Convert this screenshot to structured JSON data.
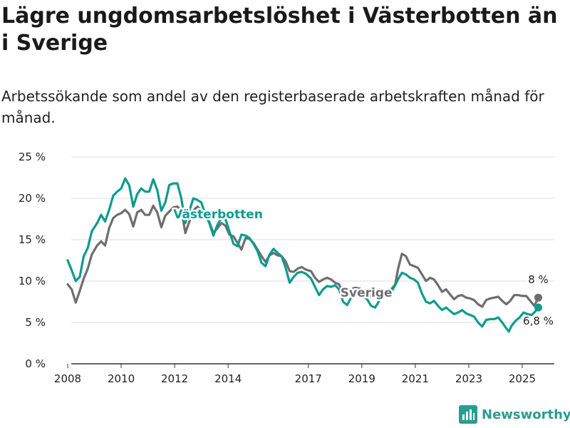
{
  "colors": {
    "sverige": "#6e6e70",
    "vasterbotten": "#0b9c8f",
    "grid": "#dddddd",
    "axis": "#333333",
    "brand": "#2a9c93"
  },
  "brand": {
    "name": "Newsworthy",
    "icon": "bar-chart-logo-icon"
  },
  "chart_data": {
    "type": "line",
    "title": "Lägre ungdomsarbetslöshet i Västerbotten än i Sverige",
    "subtitle": "Arbetssökande som andel av den registerbaserade arbetskraften månad för månad.",
    "xlabel": "",
    "ylabel": "",
    "xlim": [
      2007.6,
      2026.2
    ],
    "ylim": [
      0,
      25
    ],
    "x_ticks": [
      2008,
      2010,
      2012,
      2014,
      2017,
      2019,
      2021,
      2023,
      2025
    ],
    "x_tick_labels": [
      "2008",
      "2010",
      "2012",
      "2014",
      "2017",
      "2019",
      "2021",
      "2023",
      "2025"
    ],
    "y_ticks": [
      0,
      5,
      10,
      15,
      20,
      25
    ],
    "y_tick_labels": [
      "0 %",
      "5 %",
      "10 %",
      "15 %",
      "20 %",
      "25 %"
    ],
    "grid": true,
    "legend": "inline labels",
    "series": [
      {
        "name": "Sverige",
        "end_label": "8 %",
        "points": [
          [
            2008.0,
            9.6
          ],
          [
            2008.15,
            9.0
          ],
          [
            2008.3,
            7.4
          ],
          [
            2008.45,
            8.8
          ],
          [
            2008.6,
            10.3
          ],
          [
            2008.75,
            11.5
          ],
          [
            2008.9,
            13.2
          ],
          [
            2009.1,
            14.3
          ],
          [
            2009.25,
            14.8
          ],
          [
            2009.4,
            14.3
          ],
          [
            2009.55,
            16.4
          ],
          [
            2009.7,
            17.6
          ],
          [
            2009.85,
            18.0
          ],
          [
            2010.0,
            18.2
          ],
          [
            2010.15,
            18.6
          ],
          [
            2010.3,
            18.1
          ],
          [
            2010.45,
            16.6
          ],
          [
            2010.6,
            18.3
          ],
          [
            2010.75,
            18.6
          ],
          [
            2010.9,
            18.0
          ],
          [
            2011.05,
            18.0
          ],
          [
            2011.2,
            19.1
          ],
          [
            2011.35,
            18.3
          ],
          [
            2011.5,
            16.5
          ],
          [
            2011.65,
            17.9
          ],
          [
            2011.8,
            18.4
          ],
          [
            2011.95,
            18.9
          ],
          [
            2012.1,
            19.0
          ],
          [
            2012.25,
            18.6
          ],
          [
            2012.4,
            15.8
          ],
          [
            2012.55,
            17.2
          ],
          [
            2012.7,
            18.5
          ],
          [
            2012.85,
            19.0
          ],
          [
            2013.0,
            18.6
          ],
          [
            2013.15,
            17.9
          ],
          [
            2013.3,
            17.1
          ],
          [
            2013.45,
            15.8
          ],
          [
            2013.6,
            16.4
          ],
          [
            2013.75,
            17.0
          ],
          [
            2013.9,
            16.7
          ],
          [
            2014.05,
            15.6
          ],
          [
            2014.2,
            15.4
          ],
          [
            2014.35,
            14.6
          ],
          [
            2014.5,
            13.8
          ],
          [
            2014.65,
            15.2
          ],
          [
            2014.8,
            15.1
          ],
          [
            2014.95,
            14.6
          ],
          [
            2015.1,
            13.8
          ],
          [
            2015.25,
            13.0
          ],
          [
            2015.4,
            12.3
          ],
          [
            2015.55,
            13.1
          ],
          [
            2015.7,
            13.4
          ],
          [
            2015.85,
            13.1
          ],
          [
            2016.0,
            13.0
          ],
          [
            2016.15,
            12.4
          ],
          [
            2016.3,
            11.2
          ],
          [
            2016.45,
            11.1
          ],
          [
            2016.6,
            11.5
          ],
          [
            2016.75,
            11.7
          ],
          [
            2016.9,
            11.4
          ],
          [
            2017.1,
            11.2
          ],
          [
            2017.25,
            10.4
          ],
          [
            2017.4,
            9.9
          ],
          [
            2017.55,
            10.2
          ],
          [
            2017.7,
            10.4
          ],
          [
            2017.85,
            10.2
          ],
          [
            2018.0,
            9.8
          ],
          [
            2018.15,
            9.6
          ],
          [
            2018.3,
            8.6
          ],
          [
            2018.45,
            8.5
          ],
          [
            2018.6,
            9.0
          ],
          [
            2018.75,
            9.2
          ],
          [
            2018.9,
            9.1
          ],
          [
            2019.05,
            8.9
          ],
          [
            2019.2,
            8.8
          ],
          [
            2019.35,
            8.1
          ],
          [
            2019.5,
            8.0
          ],
          [
            2019.65,
            8.4
          ],
          [
            2019.8,
            8.6
          ],
          [
            2019.95,
            8.6
          ],
          [
            2020.1,
            9.0
          ],
          [
            2020.25,
            9.6
          ],
          [
            2020.35,
            11.4
          ],
          [
            2020.5,
            13.3
          ],
          [
            2020.65,
            13.0
          ],
          [
            2020.8,
            12.0
          ],
          [
            2020.95,
            11.8
          ],
          [
            2021.1,
            11.6
          ],
          [
            2021.25,
            10.8
          ],
          [
            2021.4,
            10.0
          ],
          [
            2021.55,
            10.4
          ],
          [
            2021.7,
            10.2
          ],
          [
            2021.85,
            9.5
          ],
          [
            2022.0,
            8.7
          ],
          [
            2022.15,
            9.0
          ],
          [
            2022.3,
            8.4
          ],
          [
            2022.45,
            7.8
          ],
          [
            2022.6,
            8.2
          ],
          [
            2022.75,
            8.3
          ],
          [
            2022.9,
            8.0
          ],
          [
            2023.05,
            7.9
          ],
          [
            2023.2,
            7.7
          ],
          [
            2023.35,
            7.2
          ],
          [
            2023.5,
            6.9
          ],
          [
            2023.65,
            7.7
          ],
          [
            2023.8,
            7.9
          ],
          [
            2023.95,
            8.0
          ],
          [
            2024.1,
            8.1
          ],
          [
            2024.25,
            7.6
          ],
          [
            2024.4,
            7.2
          ],
          [
            2024.55,
            7.6
          ],
          [
            2024.7,
            8.3
          ],
          [
            2024.85,
            8.3
          ],
          [
            2025.0,
            8.2
          ],
          [
            2025.15,
            8.2
          ],
          [
            2025.3,
            7.6
          ],
          [
            2025.45,
            7.0
          ],
          [
            2025.6,
            8.0
          ]
        ]
      },
      {
        "name": "Västerbotten",
        "end_label": "6,8 %",
        "points": [
          [
            2008.0,
            12.5
          ],
          [
            2008.15,
            11.3
          ],
          [
            2008.3,
            10.0
          ],
          [
            2008.45,
            10.5
          ],
          [
            2008.6,
            13.0
          ],
          [
            2008.75,
            14.0
          ],
          [
            2008.9,
            16.0
          ],
          [
            2009.1,
            17.0
          ],
          [
            2009.25,
            18.0
          ],
          [
            2009.4,
            17.2
          ],
          [
            2009.55,
            18.6
          ],
          [
            2009.7,
            20.3
          ],
          [
            2009.85,
            20.8
          ],
          [
            2010.0,
            21.2
          ],
          [
            2010.15,
            22.4
          ],
          [
            2010.3,
            21.6
          ],
          [
            2010.45,
            19.0
          ],
          [
            2010.6,
            20.5
          ],
          [
            2010.75,
            21.2
          ],
          [
            2010.9,
            20.8
          ],
          [
            2011.05,
            20.8
          ],
          [
            2011.2,
            22.3
          ],
          [
            2011.35,
            21.0
          ],
          [
            2011.5,
            18.5
          ],
          [
            2011.65,
            19.5
          ],
          [
            2011.8,
            21.6
          ],
          [
            2011.95,
            21.8
          ],
          [
            2012.1,
            21.8
          ],
          [
            2012.25,
            20.0
          ],
          [
            2012.4,
            17.0
          ],
          [
            2012.55,
            18.5
          ],
          [
            2012.7,
            20.0
          ],
          [
            2012.85,
            19.8
          ],
          [
            2013.0,
            19.5
          ],
          [
            2013.15,
            18.0
          ],
          [
            2013.3,
            17.0
          ],
          [
            2013.45,
            15.5
          ],
          [
            2013.6,
            16.8
          ],
          [
            2013.75,
            17.6
          ],
          [
            2013.9,
            17.5
          ],
          [
            2014.05,
            16.0
          ],
          [
            2014.2,
            14.5
          ],
          [
            2014.35,
            14.2
          ],
          [
            2014.5,
            15.6
          ],
          [
            2014.65,
            15.5
          ],
          [
            2014.8,
            15.2
          ],
          [
            2014.95,
            14.5
          ],
          [
            2015.1,
            13.6
          ],
          [
            2015.25,
            12.2
          ],
          [
            2015.4,
            11.8
          ],
          [
            2015.55,
            13.2
          ],
          [
            2015.7,
            13.9
          ],
          [
            2015.85,
            13.4
          ],
          [
            2016.0,
            13.0
          ],
          [
            2016.15,
            11.6
          ],
          [
            2016.3,
            9.8
          ],
          [
            2016.45,
            10.5
          ],
          [
            2016.6,
            11.0
          ],
          [
            2016.75,
            11.1
          ],
          [
            2016.9,
            10.9
          ],
          [
            2017.1,
            10.3
          ],
          [
            2017.25,
            9.3
          ],
          [
            2017.4,
            8.3
          ],
          [
            2017.55,
            9.0
          ],
          [
            2017.7,
            9.4
          ],
          [
            2017.85,
            9.3
          ],
          [
            2018.0,
            9.5
          ],
          [
            2018.15,
            9.0
          ],
          [
            2018.3,
            7.5
          ],
          [
            2018.45,
            7.1
          ],
          [
            2018.6,
            8.0
          ],
          [
            2018.75,
            8.5
          ],
          [
            2018.9,
            8.6
          ],
          [
            2019.05,
            8.2
          ],
          [
            2019.2,
            7.8
          ],
          [
            2019.35,
            7.0
          ],
          [
            2019.5,
            6.8
          ],
          [
            2019.65,
            7.6
          ],
          [
            2019.8,
            8.2
          ],
          [
            2019.95,
            8.4
          ],
          [
            2020.1,
            8.7
          ],
          [
            2020.25,
            9.5
          ],
          [
            2020.35,
            10.2
          ],
          [
            2020.5,
            11.0
          ],
          [
            2020.65,
            10.8
          ],
          [
            2020.8,
            10.4
          ],
          [
            2020.95,
            10.2
          ],
          [
            2021.1,
            9.8
          ],
          [
            2021.25,
            8.5
          ],
          [
            2021.4,
            7.5
          ],
          [
            2021.55,
            7.3
          ],
          [
            2021.7,
            7.6
          ],
          [
            2021.85,
            7.0
          ],
          [
            2022.0,
            6.5
          ],
          [
            2022.15,
            6.8
          ],
          [
            2022.3,
            6.4
          ],
          [
            2022.45,
            6.0
          ],
          [
            2022.6,
            6.2
          ],
          [
            2022.75,
            6.5
          ],
          [
            2022.9,
            6.1
          ],
          [
            2023.05,
            5.9
          ],
          [
            2023.2,
            5.7
          ],
          [
            2023.35,
            5.0
          ],
          [
            2023.5,
            4.5
          ],
          [
            2023.65,
            5.3
          ],
          [
            2023.8,
            5.4
          ],
          [
            2023.95,
            5.4
          ],
          [
            2024.1,
            5.6
          ],
          [
            2024.25,
            5.0
          ],
          [
            2024.4,
            4.3
          ],
          [
            2024.5,
            3.9
          ],
          [
            2024.6,
            4.6
          ],
          [
            2024.75,
            5.2
          ],
          [
            2024.9,
            5.6
          ],
          [
            2025.05,
            6.2
          ],
          [
            2025.2,
            6.0
          ],
          [
            2025.35,
            5.9
          ],
          [
            2025.45,
            6.2
          ],
          [
            2025.6,
            6.8
          ]
        ]
      }
    ]
  }
}
